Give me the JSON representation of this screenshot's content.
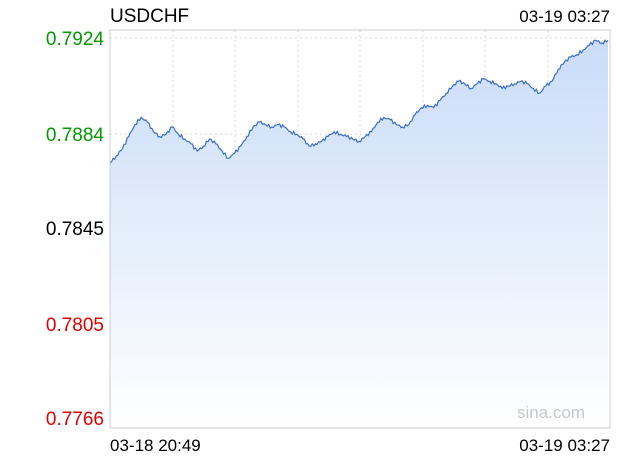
{
  "header": {
    "symbol": "USDCHF",
    "timestamp": "03-19 03:27"
  },
  "watermark": "sina.com",
  "colors": {
    "up": "#009900",
    "down": "#e00000",
    "neutral": "#000000",
    "line": "#3a6fc4",
    "fill_top": "#c9dcf8",
    "fill_bottom": "#ffffff",
    "grid": "#d8d8d8",
    "ref_line": "#9aa8c8"
  },
  "chart_data": {
    "type": "area",
    "title": "USDCHF",
    "xlabel": "",
    "ylabel": "",
    "ylim": [
      0.7766,
      0.7924
    ],
    "reference": 0.7845,
    "y_ticks": [
      {
        "label": "0.7924",
        "value": 0.7924,
        "tone": "up"
      },
      {
        "label": "0.7884",
        "value": 0.7884,
        "tone": "up"
      },
      {
        "label": "0.7845",
        "value": 0.7845,
        "tone": "neutral"
      },
      {
        "label": "0.7805",
        "value": 0.7805,
        "tone": "down"
      },
      {
        "label": "0.7766",
        "value": 0.7766,
        "tone": "down"
      }
    ],
    "x_labels": {
      "start": "03-18 20:49",
      "end": "03-19 03:27"
    },
    "grid": true,
    "series": [
      {
        "values": [
          0.7872,
          0.7875,
          0.7878,
          0.7883,
          0.7888,
          0.7891,
          0.7889,
          0.7885,
          0.7883,
          0.7884,
          0.7887,
          0.7884,
          0.7882,
          0.788,
          0.7877,
          0.7879,
          0.7882,
          0.788,
          0.7877,
          0.7874,
          0.7876,
          0.7879,
          0.7883,
          0.7887,
          0.7889,
          0.7888,
          0.7887,
          0.7888,
          0.7887,
          0.7885,
          0.7884,
          0.7882,
          0.7879,
          0.788,
          0.7881,
          0.7883,
          0.7885,
          0.7884,
          0.7883,
          0.7882,
          0.7881,
          0.7883,
          0.7885,
          0.7889,
          0.7891,
          0.789,
          0.7888,
          0.7887,
          0.7888,
          0.7892,
          0.7895,
          0.7896,
          0.7895,
          0.7898,
          0.7901,
          0.7904,
          0.7906,
          0.7905,
          0.7903,
          0.7905,
          0.7907,
          0.7906,
          0.7905,
          0.7903,
          0.7904,
          0.7905,
          0.7906,
          0.7905,
          0.7903,
          0.7901,
          0.7904,
          0.7906,
          0.7911,
          0.7914,
          0.7916,
          0.7917,
          0.7919,
          0.7921,
          0.7923,
          0.7922,
          0.7923
        ]
      }
    ]
  }
}
